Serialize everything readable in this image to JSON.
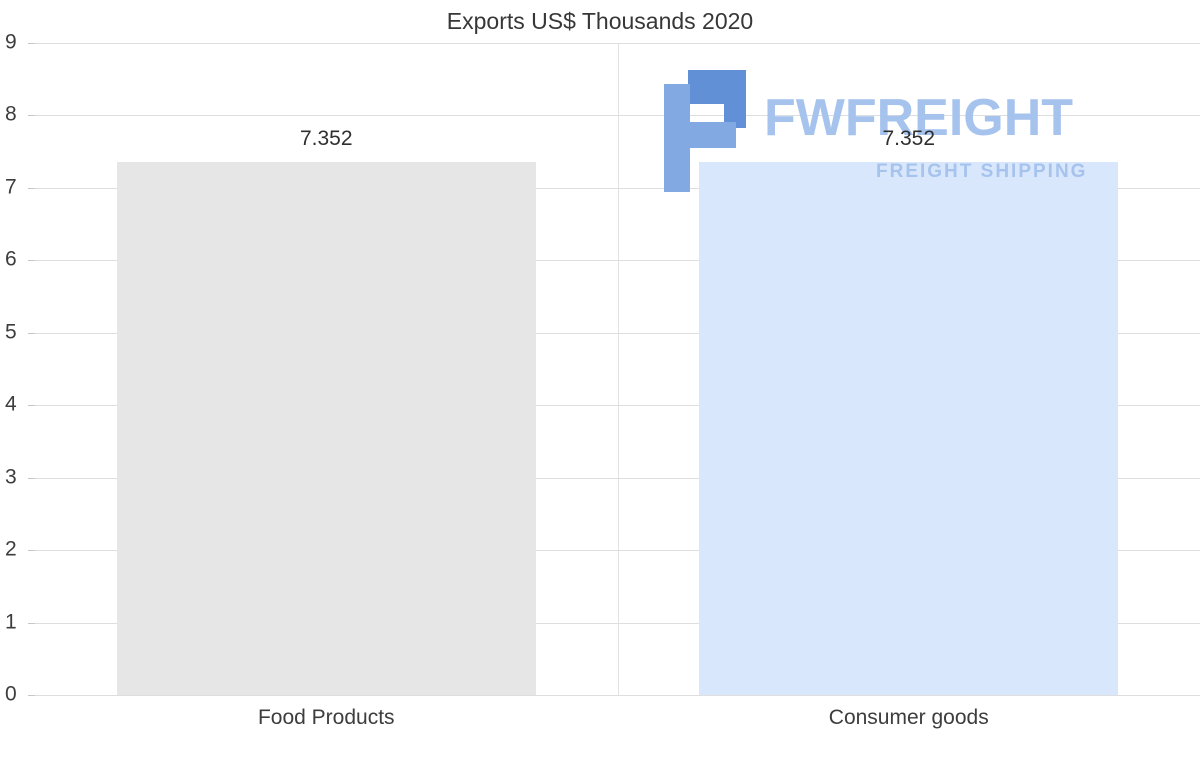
{
  "chart_data": {
    "type": "bar",
    "title": "Exports US$ Thousands 2020",
    "categories": [
      "Food Products",
      "Consumer goods"
    ],
    "values": [
      7.352,
      7.352
    ],
    "value_labels": [
      "7.352",
      "7.352"
    ],
    "series_colors": [
      "#e6e6e6",
      "#d8e7fb"
    ],
    "ylim": [
      0,
      9
    ],
    "yticks": [
      0,
      1,
      2,
      3,
      4,
      5,
      6,
      7,
      8,
      9
    ],
    "xlabel": "",
    "ylabel": "",
    "grid": true,
    "legend_position": "none",
    "gridline_color": "#dedede",
    "text_color": "#3d3d3d"
  },
  "watermark": {
    "brand": "FWFREIGHT",
    "tagline": "FREIGHT SHIPPING",
    "brand_color": "#a6c3ee",
    "icon_color_dark": "#6290d6",
    "icon_color_light": "#83a9e3"
  }
}
